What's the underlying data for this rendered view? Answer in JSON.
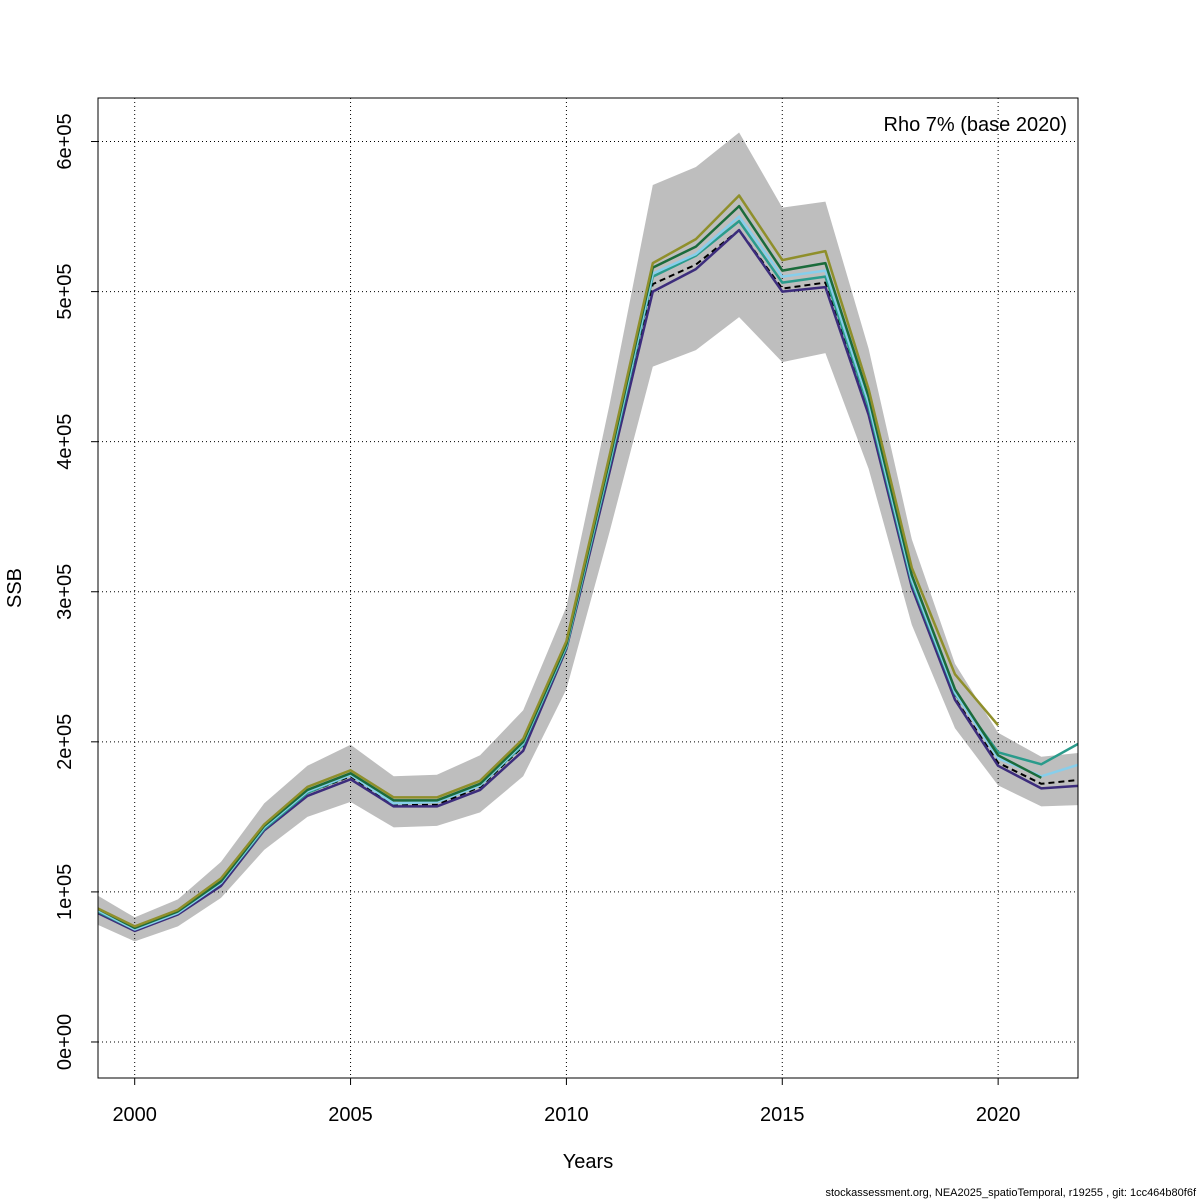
{
  "chart_data": {
    "type": "line",
    "xlabel": "Years",
    "ylabel": "SSB",
    "annotation": "Rho 7% (base 2020)",
    "footer": "stockassessment.org, NEA2025_spatioTemporal, r19255 , git: 1cc464b80f6f",
    "xlim": [
      1999.15,
      2021.85
    ],
    "ylim": [
      -24000,
      629000
    ],
    "grid": true,
    "x_ticks": [
      2000,
      2005,
      2010,
      2015,
      2020
    ],
    "x_tick_labels": [
      "2000",
      "2005",
      "2010",
      "2015",
      "2020"
    ],
    "y_ticks": [
      0,
      100000,
      200000,
      300000,
      400000,
      500000,
      600000
    ],
    "y_tick_labels": [
      "0e+00",
      "1e+05",
      "2e+05",
      "3e+05",
      "4e+05",
      "5e+05",
      "6e+05"
    ],
    "band": {
      "color": "#bebebe",
      "x": [
        1999,
        2000,
        2001,
        2002,
        2003,
        2004,
        2005,
        2006,
        2007,
        2008,
        2009,
        2010,
        2011,
        2012,
        2013,
        2014,
        2015,
        2016,
        2017,
        2018,
        2019,
        2020,
        2021,
        2022
      ],
      "lower": [
        80000,
        67000,
        77000,
        96000,
        128000,
        150000,
        160000,
        143000,
        144000,
        153000,
        177000,
        235000,
        340000,
        450000,
        461000,
        483000,
        453000,
        459000,
        382000,
        278000,
        209000,
        171000,
        157000,
        158000
      ],
      "upper": [
        100000,
        83000,
        95000,
        120000,
        159000,
        184000,
        198000,
        177000,
        178000,
        191000,
        221000,
        290000,
        425000,
        571000,
        583000,
        606000,
        556000,
        560000,
        462000,
        335000,
        252000,
        206000,
        190000,
        193000
      ]
    },
    "series": [
      {
        "color": "#000000",
        "dashed": true,
        "x": [
          1999,
          2000,
          2001,
          2002,
          2003,
          2004,
          2005,
          2006,
          2007,
          2008,
          2009,
          2010,
          2011,
          2012,
          2013,
          2014,
          2015,
          2016,
          2017,
          2018,
          2019,
          2020,
          2021,
          2022
        ],
        "values": [
          89000,
          74000,
          85000,
          106000,
          142000,
          166000,
          177000,
          158000,
          158000,
          170000,
          197000,
          262000,
          382000,
          505000,
          518000,
          541000,
          502000,
          506000,
          419000,
          304000,
          229000,
          186000,
          172000,
          175000
        ]
      },
      {
        "color": "#3c2c7c",
        "dashed": false,
        "x": [
          1999,
          2000,
          2001,
          2002,
          2003,
          2004,
          2005,
          2006,
          2007,
          2008,
          2009,
          2010,
          2011,
          2012,
          2013,
          2014,
          2015,
          2016,
          2017,
          2018,
          2019,
          2020,
          2021,
          2022
        ],
        "values": [
          88000,
          74000,
          85000,
          104000,
          141000,
          164000,
          175000,
          157000,
          157000,
          168000,
          194000,
          262000,
          380000,
          500000,
          515000,
          541000,
          500000,
          503000,
          418000,
          303000,
          228000,
          184000,
          169000,
          171000
        ]
      },
      {
        "color": "#2a9b8b",
        "dashed": false,
        "x": [
          1999,
          2000,
          2001,
          2002,
          2003,
          2004,
          2005,
          2006,
          2007,
          2008,
          2009,
          2010,
          2011,
          2012,
          2013,
          2014,
          2015,
          2016,
          2017,
          2018,
          2019,
          2020,
          2021,
          2022
        ],
        "values": [
          89000,
          75000,
          86000,
          106000,
          142000,
          166000,
          178000,
          159000,
          160000,
          171000,
          198000,
          263000,
          384000,
          510000,
          524000,
          547000,
          506000,
          510000,
          423000,
          306000,
          232000,
          193000,
          185000,
          201000
        ]
      },
      {
        "color": "#87ceeb",
        "dashed": false,
        "x": [
          1999,
          2000,
          2001,
          2002,
          2003,
          2004,
          2005,
          2006,
          2007,
          2008,
          2009,
          2010,
          2011,
          2012,
          2013,
          2014,
          2015,
          2016,
          2017,
          2018,
          2019,
          2020,
          2021,
          2022
        ],
        "values": [
          90000,
          75000,
          86000,
          106000,
          143000,
          167000,
          178000,
          159000,
          160000,
          171000,
          199000,
          264000,
          386000,
          512000,
          525000,
          550000,
          510000,
          514000,
          426000,
          308000,
          233000,
          189000,
          177000,
          186000
        ]
      },
      {
        "color": "#1b6b3b",
        "dashed": false,
        "x": [
          1999,
          2000,
          2001,
          2002,
          2003,
          2004,
          2005,
          2006,
          2007,
          2008,
          2009,
          2010,
          2011,
          2012,
          2013,
          2014,
          2015,
          2016,
          2017,
          2018,
          2019,
          2020,
          2021
        ],
        "values": [
          91000,
          76000,
          87000,
          107000,
          144000,
          168000,
          179000,
          161000,
          161000,
          172000,
          200000,
          265000,
          388000,
          516000,
          530000,
          557000,
          514000,
          519000,
          430000,
          311000,
          235000,
          191000,
          176000
        ]
      },
      {
        "color": "#8f8f2b",
        "dashed": false,
        "x": [
          1999,
          2000,
          2001,
          2002,
          2003,
          2004,
          2005,
          2006,
          2007,
          2008,
          2009,
          2010,
          2011,
          2012,
          2013,
          2014,
          2015,
          2016,
          2017,
          2018,
          2019,
          2020
        ],
        "values": [
          91000,
          77000,
          88000,
          109000,
          145000,
          170000,
          181000,
          163000,
          163000,
          174000,
          202000,
          267000,
          391000,
          519000,
          535000,
          564000,
          521000,
          527000,
          435000,
          316000,
          245000,
          211000
        ]
      }
    ]
  }
}
